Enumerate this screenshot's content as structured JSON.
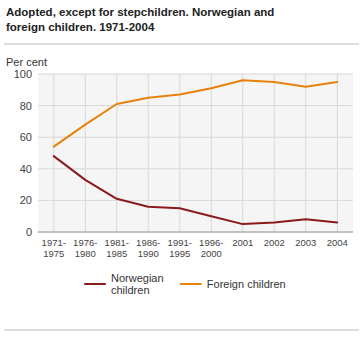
{
  "chart_data": {
    "type": "line",
    "title": "Adopted, except for stepchildren. Norwegian and\nforeign children. 1971-2004",
    "y_label": "Per cent",
    "categories": [
      "1971-\n1975",
      "1976-\n1980",
      "1981-\n1985",
      "1986-\n1990",
      "1991-\n1995",
      "1996-\n2000",
      "2001",
      "2002",
      "2003",
      "2004"
    ],
    "series": [
      {
        "name": "Norwegian\nchildren",
        "color": "#8B1A1A",
        "values": [
          48,
          33,
          21,
          16,
          15,
          10,
          5,
          6,
          8,
          6
        ]
      },
      {
        "name": "Foreign children",
        "color": "#E8820A",
        "values": [
          54,
          68,
          81,
          85,
          87,
          91,
          96,
          95,
          92,
          95
        ]
      }
    ],
    "ylim": [
      0,
      100
    ],
    "yticks": [
      0,
      20,
      40,
      60,
      80,
      100
    ],
    "grid": true,
    "legend": "bottom"
  }
}
